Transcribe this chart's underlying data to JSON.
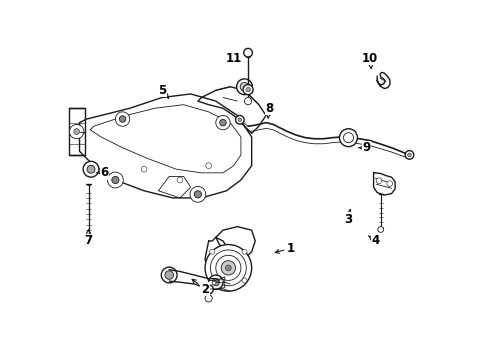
{
  "background_color": "#ffffff",
  "line_color": "#1a1a1a",
  "label_color": "#000000",
  "fig_width": 4.89,
  "fig_height": 3.6,
  "dpi": 100,
  "lw_main": 1.0,
  "lw_thin": 0.6,
  "lw_detail": 0.4,
  "parts_labels": {
    "1": [
      0.63,
      0.31,
      0.575,
      0.295
    ],
    "2": [
      0.39,
      0.195,
      0.345,
      0.23
    ],
    "3": [
      0.79,
      0.39,
      0.795,
      0.42
    ],
    "4": [
      0.865,
      0.33,
      0.845,
      0.345
    ],
    "5": [
      0.27,
      0.75,
      0.295,
      0.72
    ],
    "6": [
      0.11,
      0.52,
      0.08,
      0.52
    ],
    "7": [
      0.065,
      0.33,
      0.065,
      0.365
    ],
    "8": [
      0.57,
      0.7,
      0.565,
      0.67
    ],
    "9": [
      0.84,
      0.59,
      0.81,
      0.59
    ],
    "10": [
      0.85,
      0.84,
      0.855,
      0.8
    ],
    "11": [
      0.47,
      0.84,
      0.49,
      0.83
    ]
  }
}
